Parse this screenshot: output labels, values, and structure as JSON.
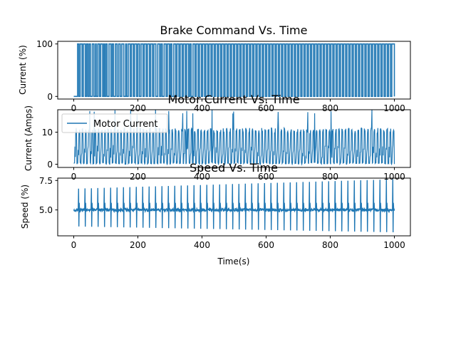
{
  "chart_data": [
    {
      "type": "line",
      "title": "Brake Command Vs. Time",
      "xlabel": "",
      "ylabel": "Current (%)",
      "xlim": [
        -50,
        1050
      ],
      "ylim": [
        -5,
        105
      ],
      "xticks": [
        0,
        200,
        400,
        600,
        800,
        1000
      ],
      "yticks": [
        0,
        100
      ],
      "grid": false,
      "color": "#1f77b4",
      "series": [
        {
          "pulse_high": 100,
          "pulse_low": 0,
          "x": [
            0,
            1000
          ],
          "pulse_intervals": [
            [
              12,
              16
            ],
            [
              20,
              26
            ],
            [
              30,
              36
            ],
            [
              40,
              44
            ],
            [
              48,
              52
            ],
            [
              58,
              63
            ],
            [
              68,
              70
            ],
            [
              75,
              80
            ],
            [
              84,
              90
            ],
            [
              94,
              96
            ],
            [
              100,
              104
            ],
            [
              110,
              116
            ],
            [
              120,
              124
            ],
            [
              130,
              135
            ],
            [
              140,
              145
            ],
            [
              150,
              156
            ],
            [
              162,
              165
            ],
            [
              170,
              176
            ],
            [
              180,
              186
            ],
            [
              190,
              196
            ],
            [
              200,
              205
            ],
            [
              210,
              216
            ],
            [
              220,
              226
            ],
            [
              230,
              236
            ],
            [
              240,
              246
            ],
            [
              250,
              256
            ],
            [
              262,
              268
            ],
            [
              272,
              276
            ],
            [
              282,
              288
            ],
            [
              292,
              298
            ],
            [
              302,
              306
            ],
            [
              312,
              318
            ],
            [
              322,
              328
            ],
            [
              332,
              338
            ],
            [
              342,
              348
            ],
            [
              352,
              358
            ],
            [
              362,
              366
            ],
            [
              372,
              378
            ],
            [
              382,
              388
            ],
            [
              392,
              398
            ],
            [
              402,
              408
            ],
            [
              412,
              418
            ],
            [
              422,
              428
            ],
            [
              432,
              438
            ],
            [
              442,
              448
            ],
            [
              452,
              458
            ],
            [
              462,
              468
            ],
            [
              472,
              478
            ],
            [
              482,
              488
            ],
            [
              492,
              498
            ],
            [
              502,
              508
            ],
            [
              512,
              518
            ],
            [
              522,
              528
            ],
            [
              532,
              538
            ],
            [
              542,
              548
            ],
            [
              552,
              558
            ],
            [
              562,
              568
            ],
            [
              572,
              578
            ],
            [
              582,
              588
            ],
            [
              592,
              598
            ],
            [
              602,
              608
            ],
            [
              612,
              618
            ],
            [
              622,
              628
            ],
            [
              632,
              638
            ],
            [
              642,
              648
            ],
            [
              652,
              658
            ],
            [
              662,
              668
            ],
            [
              672,
              678
            ],
            [
              682,
              688
            ],
            [
              692,
              698
            ],
            [
              702,
              708
            ],
            [
              712,
              718
            ],
            [
              722,
              728
            ],
            [
              732,
              738
            ],
            [
              742,
              748
            ],
            [
              752,
              758
            ],
            [
              762,
              768
            ],
            [
              772,
              778
            ],
            [
              782,
              788
            ],
            [
              792,
              798
            ],
            [
              802,
              808
            ],
            [
              812,
              818
            ],
            [
              822,
              828
            ],
            [
              832,
              838
            ],
            [
              842,
              848
            ],
            [
              852,
              858
            ],
            [
              862,
              868
            ],
            [
              872,
              878
            ],
            [
              882,
              888
            ],
            [
              892,
              898
            ],
            [
              902,
              908
            ],
            [
              912,
              918
            ],
            [
              922,
              928
            ],
            [
              932,
              938
            ],
            [
              942,
              948
            ],
            [
              952,
              958
            ],
            [
              962,
              968
            ],
            [
              972,
              978
            ],
            [
              982,
              988
            ],
            [
              992,
              1000
            ]
          ]
        }
      ]
    },
    {
      "type": "line",
      "title": "Motor Current Vs. Time",
      "xlabel": "",
      "ylabel": "Current (Amps)",
      "xlim": [
        -50,
        1050
      ],
      "ylim": [
        -1,
        17
      ],
      "xticks": [
        0,
        200,
        400,
        600,
        800,
        1000
      ],
      "yticks": [
        0,
        10
      ],
      "grid": false,
      "legend": "upper-left",
      "color": "#1f77b4",
      "series": [
        {
          "name": "Motor Current",
          "x_range": [
            0,
            1000
          ],
          "baseline": 0,
          "mid_band": [
            2,
            6
          ],
          "peak_typical": 11,
          "peak_max": 17
        }
      ]
    },
    {
      "type": "line",
      "title": "Speed Vs. Time",
      "xlabel": "Time(s)",
      "ylabel": "Speed (%)",
      "xlim": [
        -50,
        1050
      ],
      "ylim": [
        2.8,
        7.7
      ],
      "xticks": [
        0,
        200,
        400,
        600,
        800,
        1000
      ],
      "yticks": [
        5.0,
        7.5
      ],
      "ytick_labels": [
        "5.0",
        "7.5"
      ],
      "grid": false,
      "color": "#1f77b4",
      "series": [
        {
          "x_range": [
            0,
            1000
          ],
          "steady_value": 5.0,
          "spike_high_start": 6.8,
          "spike_high_end": 7.6,
          "spike_low_start": 3.6,
          "spike_low_end": 3.1
        }
      ]
    }
  ]
}
